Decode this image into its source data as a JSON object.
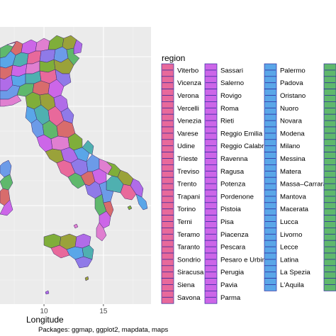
{
  "chart_data": {
    "type": "map",
    "xlabel": "Longitude",
    "x_ticks": [
      {
        "label": "10",
        "value": 10
      },
      {
        "label": "15",
        "value": 15
      }
    ],
    "xlim": [
      6.3,
      19.0
    ],
    "ylim": [
      36.4,
      47.3
    ],
    "caption": "Packages: ggmap, ggplot2, mapdata, maps",
    "legend": {
      "title": "region",
      "columns": [
        {
          "color": "#e8699b",
          "labels": [
            "Viterbo",
            "Vicenza",
            "Verona",
            "Vercelli",
            "Venezia",
            "Varese",
            "Udine",
            "Trieste",
            "Treviso",
            "Trento",
            "Trapani",
            "Torino",
            "Terni",
            "Teramo",
            "Taranto",
            "Sondrio",
            "Siracusa",
            "Siena",
            "Savona"
          ]
        },
        {
          "color": "#cc66e8",
          "labels": [
            "Sassari",
            "Salerno",
            "Rovigo",
            "Roma",
            "Rieti",
            "Reggio Emilia",
            "Reggio Calabria",
            "Ravenna",
            "Ragusa",
            "Potenza",
            "Pordenone",
            "Pistoia",
            "Pisa",
            "Piacenza",
            "Pescara",
            "Pesaro e Urbino",
            "Perugia",
            "Pavia",
            "Parma"
          ]
        },
        {
          "color": "#5aa6e8",
          "labels": [
            "Palermo",
            "Padova",
            "Oristano",
            "Nuoro",
            "Novara",
            "Modena",
            "Milano",
            "Messina",
            "Matera",
            "Massa–Carrara",
            "Mantova",
            "Macerata",
            "Lucca",
            "Livorno",
            "Lecce",
            "Latina",
            "La Spezia",
            "L'Aquila"
          ]
        },
        {
          "color": "#5fb86c",
          "labels": []
        }
      ]
    },
    "palette": [
      "#e8699b",
      "#cc66e8",
      "#5aa6e8",
      "#5fb86c",
      "#9aa23a",
      "#8f7ae8",
      "#e07fd0",
      "#4fb0b0",
      "#d86c6c",
      "#b06ce8",
      "#6c9be8",
      "#7fae3a"
    ]
  }
}
